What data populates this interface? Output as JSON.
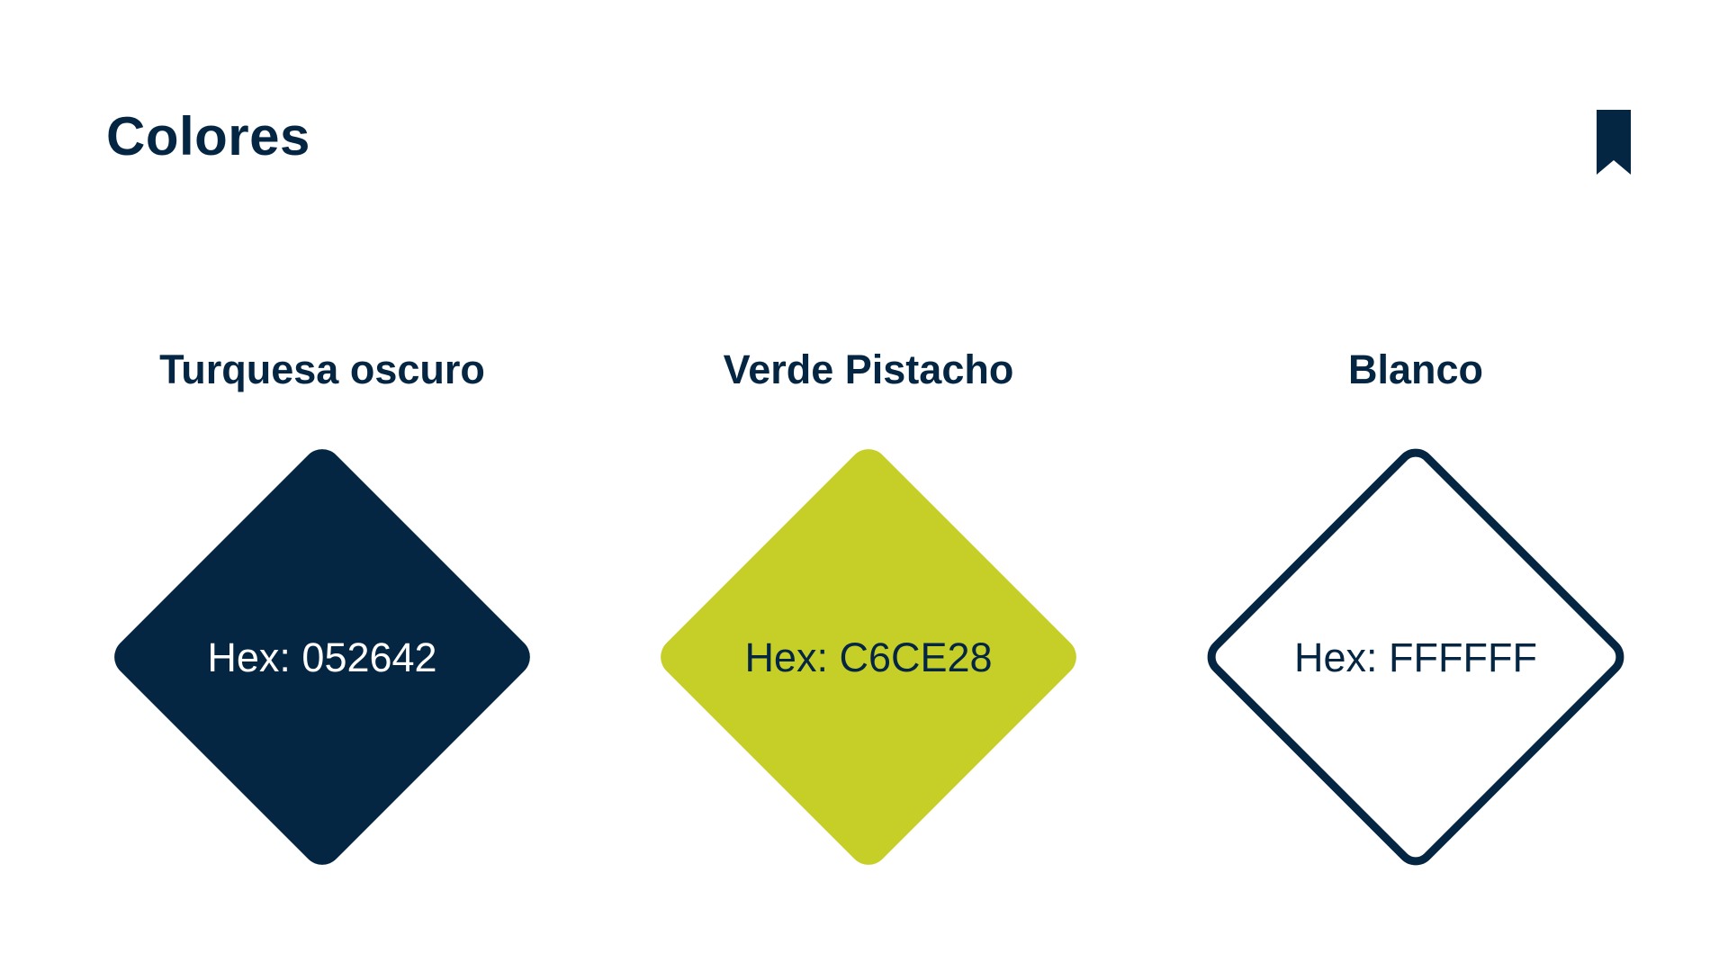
{
  "page": {
    "title": "Colores"
  },
  "swatches": [
    {
      "name": "Turquesa oscuro",
      "hex_label": "Hex: 052642",
      "color": "#052642",
      "label_color": "#ffffff",
      "style": "filled"
    },
    {
      "name": "Verde Pistacho",
      "hex_label": "Hex: C6CE28",
      "color": "#C6CE28",
      "label_color": "#052642",
      "style": "filled"
    },
    {
      "name": "Blanco",
      "hex_label": "Hex: FFFFFF",
      "color": "#FFFFFF",
      "label_color": "#052642",
      "style": "outlined",
      "outline_color": "#052642"
    }
  ],
  "icons": {
    "bookmark": "bookmark-icon"
  }
}
